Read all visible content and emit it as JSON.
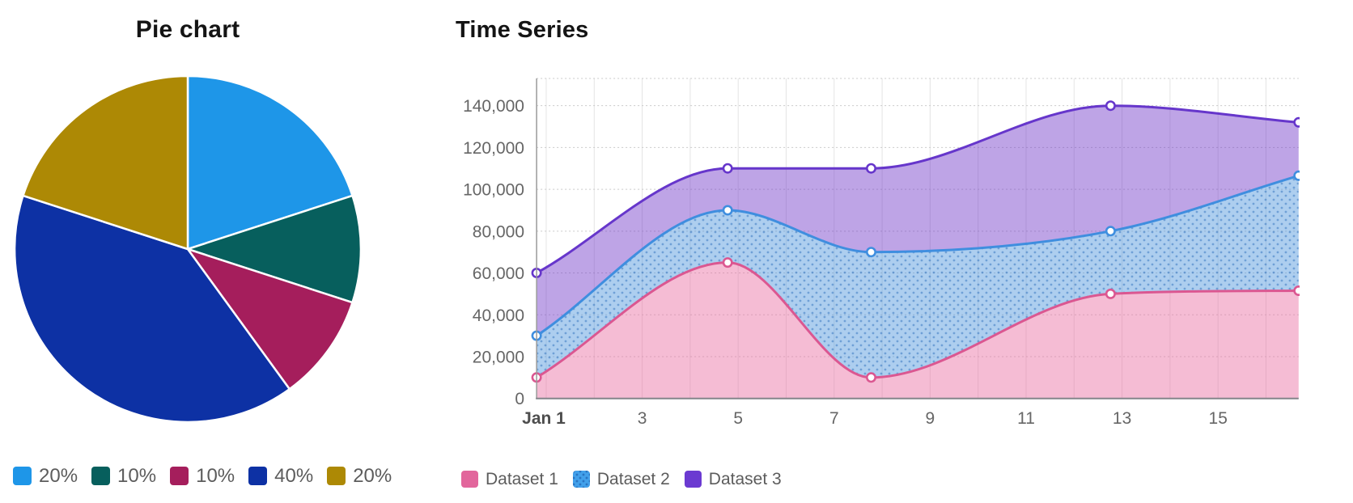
{
  "chart_data": [
    {
      "type": "pie",
      "title": "Pie chart",
      "labels": [
        "20%",
        "10%",
        "10%",
        "40%",
        "20%"
      ],
      "values": [
        20,
        10,
        10,
        40,
        20
      ],
      "colors": [
        "#1e96e8",
        "#075f5d",
        "#a51e5c",
        "#0d31a4",
        "#ad8905"
      ],
      "slice_border_color": "#ffffff",
      "start_at_top": true,
      "clockwise": true,
      "legend_position": "bottom"
    },
    {
      "type": "area",
      "title": "Time Series",
      "curve": "monotone",
      "grid": true,
      "legend_position": "bottom",
      "x_axis": {
        "min_day": 0.8,
        "max_day": 16.68,
        "gridline_every_days": 1,
        "ticks": [
          {
            "label": "Jan 1",
            "day": 1,
            "major": true
          },
          {
            "label": "3",
            "day": 3
          },
          {
            "label": "5",
            "day": 5
          },
          {
            "label": "7",
            "day": 7
          },
          {
            "label": "9",
            "day": 9
          },
          {
            "label": "11",
            "day": 11
          },
          {
            "label": "13",
            "day": 13
          },
          {
            "label": "15",
            "day": 15
          }
        ]
      },
      "y_axis": {
        "min": 0,
        "max": 153000,
        "tick_step": 20000,
        "ticks": [
          {
            "label": "0",
            "value": 0
          },
          {
            "label": "20,000",
            "value": 20000
          },
          {
            "label": "40,000",
            "value": 40000
          },
          {
            "label": "60,000",
            "value": 60000
          },
          {
            "label": "80,000",
            "value": 80000
          },
          {
            "label": "100,000",
            "value": 100000
          },
          {
            "label": "120,000",
            "value": 120000
          },
          {
            "label": "140,000",
            "value": 140000
          }
        ]
      },
      "series": [
        {
          "name": "Dataset 1",
          "fill_to": "zero",
          "pattern": "plain",
          "line_color": "#db5791",
          "swatch_color": "#e2669c",
          "fill_color": "rgba(232,106,160,0.45)",
          "x_days": [
            0.8,
            4.78,
            7.77,
            12.76,
            16.68
          ],
          "values": [
            10000,
            65000,
            10000,
            50000,
            51500
          ]
        },
        {
          "name": "Dataset 2",
          "fill_to": "previous",
          "pattern": "dots",
          "line_color": "#3f8edf",
          "swatch_color": "#42a0ea",
          "fill_color": "rgba(80,150,220,0.47)",
          "dot_color": "rgba(35,105,185,0.45)",
          "x_days": [
            0.8,
            4.78,
            7.77,
            12.76,
            16.68
          ],
          "values": [
            30000,
            90000,
            70000,
            80000,
            106500
          ]
        },
        {
          "name": "Dataset 3",
          "fill_to": "previous",
          "pattern": "plain",
          "line_color": "#6636cb",
          "swatch_color": "#6b3ad1",
          "fill_color": "rgba(106,48,198,0.44)",
          "x_days": [
            0.8,
            4.78,
            7.77,
            12.76,
            16.68
          ],
          "values": [
            60000,
            110000,
            110000,
            140000,
            132000
          ]
        }
      ]
    }
  ]
}
